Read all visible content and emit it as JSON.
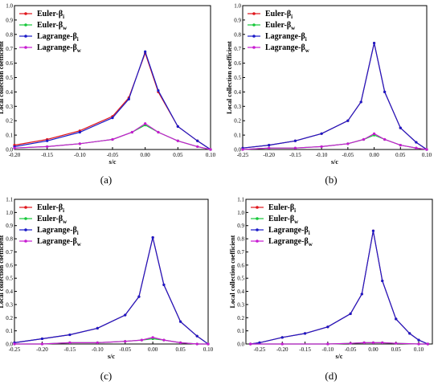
{
  "colors": {
    "euler_bi": "#e0151b",
    "euler_bw": "#16c83a",
    "lagrange_bi": "#1a1ac8",
    "lagrange_bw": "#c81ad2",
    "axis": "#000000"
  },
  "chart_data": [
    {
      "type": "line",
      "panel_label": "(a)",
      "xlabel": "s/c",
      "ylabel": "Local collection coefficient",
      "xlim": [
        -0.2,
        0.1
      ],
      "ylim": [
        0.0,
        1.0
      ],
      "xticks": [
        "-0.20",
        "-0.15",
        "-0.10",
        "-0.05",
        "0.00",
        "0.05",
        "0.10"
      ],
      "yticks": [
        "0.0",
        "0.1",
        "0.2",
        "0.3",
        "0.4",
        "0.5",
        "0.6",
        "0.7",
        "0.8",
        "0.9",
        "1.0"
      ],
      "legend_position": "top-left",
      "series": [
        {
          "name": "Euler-β",
          "subscript": "i",
          "color": "#e0151b",
          "x": [
            -0.2,
            -0.15,
            -0.1,
            -0.05,
            -0.025,
            0.0,
            0.02,
            0.05,
            0.08,
            0.1
          ],
          "y": [
            0.03,
            0.07,
            0.13,
            0.23,
            0.36,
            0.67,
            0.4,
            0.16,
            0.06,
            0.0
          ]
        },
        {
          "name": "Euler-β",
          "subscript": "w",
          "color": "#16c83a",
          "x": [
            -0.2,
            -0.15,
            -0.1,
            -0.05,
            -0.02,
            0.0,
            0.02,
            0.05,
            0.08,
            0.1
          ],
          "y": [
            0.01,
            0.02,
            0.04,
            0.07,
            0.12,
            0.17,
            0.12,
            0.06,
            0.02,
            0.0
          ]
        },
        {
          "name": "Lagrange-β",
          "subscript": "i",
          "color": "#1a1ac8",
          "x": [
            -0.2,
            -0.15,
            -0.1,
            -0.05,
            -0.025,
            0.0,
            0.02,
            0.05,
            0.08,
            0.1
          ],
          "y": [
            0.02,
            0.06,
            0.12,
            0.22,
            0.35,
            0.68,
            0.41,
            0.16,
            0.06,
            0.0
          ]
        },
        {
          "name": "Lagrange-β",
          "subscript": "w",
          "color": "#c81ad2",
          "x": [
            -0.2,
            -0.15,
            -0.1,
            -0.05,
            -0.02,
            0.0,
            0.02,
            0.05,
            0.08,
            0.1
          ],
          "y": [
            0.01,
            0.02,
            0.04,
            0.07,
            0.12,
            0.18,
            0.12,
            0.06,
            0.02,
            0.0
          ]
        }
      ]
    },
    {
      "type": "line",
      "panel_label": "(b)",
      "xlabel": "s/c",
      "ylabel": "Local collection coefficient",
      "xlim": [
        -0.25,
        0.1
      ],
      "ylim": [
        0.0,
        1.0
      ],
      "xticks": [
        "-0.25",
        "-0.20",
        "-0.15",
        "-0.10",
        "-0.05",
        "0.00",
        "0.05",
        "0.10"
      ],
      "yticks": [
        "0.0",
        "0.1",
        "0.2",
        "0.3",
        "0.4",
        "0.5",
        "0.6",
        "0.7",
        "0.8",
        "0.9",
        "1.0"
      ],
      "legend_position": "top-left",
      "series": [
        {
          "name": "Euler-β",
          "subscript": "i",
          "color": "#e0151b",
          "x": [
            -0.25,
            -0.2,
            -0.15,
            -0.1,
            -0.05,
            -0.025,
            0.0,
            0.02,
            0.05,
            0.08,
            0.1
          ],
          "y": [
            0.01,
            0.03,
            0.06,
            0.11,
            0.2,
            0.33,
            0.74,
            0.4,
            0.15,
            0.05,
            0.0
          ]
        },
        {
          "name": "Euler-β",
          "subscript": "w",
          "color": "#16c83a",
          "x": [
            -0.25,
            -0.2,
            -0.15,
            -0.1,
            -0.05,
            -0.02,
            0.0,
            0.02,
            0.05,
            0.08,
            0.1
          ],
          "y": [
            0.0,
            0.01,
            0.01,
            0.02,
            0.04,
            0.07,
            0.1,
            0.07,
            0.03,
            0.01,
            0.0
          ]
        },
        {
          "name": "Lagrange-β",
          "subscript": "i",
          "color": "#1a1ac8",
          "x": [
            -0.25,
            -0.2,
            -0.15,
            -0.1,
            -0.05,
            -0.025,
            0.0,
            0.02,
            0.05,
            0.08,
            0.1
          ],
          "y": [
            0.01,
            0.03,
            0.06,
            0.11,
            0.2,
            0.33,
            0.74,
            0.4,
            0.15,
            0.05,
            0.0
          ]
        },
        {
          "name": "Lagrange-β",
          "subscript": "w",
          "color": "#c81ad2",
          "x": [
            -0.25,
            -0.2,
            -0.15,
            -0.1,
            -0.05,
            -0.02,
            0.0,
            0.02,
            0.05,
            0.08,
            0.1
          ],
          "y": [
            0.0,
            0.01,
            0.01,
            0.02,
            0.04,
            0.07,
            0.11,
            0.07,
            0.03,
            0.01,
            0.0
          ]
        }
      ]
    },
    {
      "type": "line",
      "panel_label": "(c)",
      "xlabel": "s/c",
      "ylabel": "Local collection coefficient",
      "xlim": [
        -0.25,
        0.1
      ],
      "ylim": [
        0.0,
        1.1
      ],
      "xticks": [
        "-0.25",
        "-0.20",
        "-0.15",
        "-0.10",
        "-0.05",
        "0.00",
        "0.05",
        "0.10"
      ],
      "yticks": [
        "0.0",
        "0.1",
        "0.2",
        "0.3",
        "0.4",
        "0.5",
        "0.6",
        "0.7",
        "0.8",
        "0.9",
        "1.0",
        "1.1"
      ],
      "legend_position": "top-left",
      "series": [
        {
          "name": "Euler-β",
          "subscript": "i",
          "color": "#e0151b",
          "x": [
            -0.25,
            -0.2,
            -0.15,
            -0.1,
            -0.05,
            -0.025,
            0.0,
            0.02,
            0.05,
            0.08,
            0.1
          ],
          "y": [
            0.01,
            0.04,
            0.07,
            0.12,
            0.22,
            0.36,
            0.81,
            0.45,
            0.17,
            0.06,
            0.0
          ]
        },
        {
          "name": "Euler-β",
          "subscript": "w",
          "color": "#16c83a",
          "x": [
            -0.25,
            -0.2,
            -0.15,
            -0.1,
            -0.05,
            -0.02,
            0.0,
            0.02,
            0.05,
            0.08,
            0.1
          ],
          "y": [
            0.0,
            0.0,
            0.01,
            0.01,
            0.02,
            0.03,
            0.04,
            0.03,
            0.01,
            0.0,
            0.0
          ]
        },
        {
          "name": "Lagrange-β",
          "subscript": "i",
          "color": "#1a1ac8",
          "x": [
            -0.25,
            -0.2,
            -0.15,
            -0.1,
            -0.05,
            -0.025,
            0.0,
            0.02,
            0.05,
            0.08,
            0.1
          ],
          "y": [
            0.01,
            0.04,
            0.07,
            0.12,
            0.22,
            0.36,
            0.81,
            0.45,
            0.17,
            0.06,
            0.0
          ]
        },
        {
          "name": "Lagrange-β",
          "subscript": "w",
          "color": "#c81ad2",
          "x": [
            -0.25,
            -0.2,
            -0.15,
            -0.1,
            -0.05,
            -0.02,
            0.0,
            0.02,
            0.05,
            0.08,
            0.1
          ],
          "y": [
            0.0,
            0.0,
            0.01,
            0.01,
            0.02,
            0.03,
            0.05,
            0.03,
            0.01,
            0.0,
            0.0
          ]
        }
      ]
    },
    {
      "type": "line",
      "panel_label": "(d)",
      "xlabel": "s/c",
      "ylabel": "Local collection coefficient",
      "xlim": [
        -0.28,
        0.13
      ],
      "ylim": [
        0.0,
        1.1
      ],
      "xticks": [
        "-0.25",
        "-0.20",
        "-0.15",
        "-0.10",
        "-0.05",
        "0.00",
        "0.05",
        "0.10"
      ],
      "yticks": [
        "0.0",
        "0.1",
        "0.2",
        "0.3",
        "0.4",
        "0.5",
        "0.6",
        "0.7",
        "0.8",
        "0.9",
        "1.0",
        "1.1"
      ],
      "legend_position": "top-left",
      "series": [
        {
          "name": "Euler-β",
          "subscript": "i",
          "color": "#e0151b",
          "x": [
            -0.27,
            -0.25,
            -0.2,
            -0.15,
            -0.1,
            -0.05,
            -0.025,
            0.0,
            0.02,
            0.05,
            0.08,
            0.1,
            0.12
          ],
          "y": [
            0.0,
            0.01,
            0.05,
            0.08,
            0.13,
            0.23,
            0.38,
            0.86,
            0.48,
            0.19,
            0.08,
            0.03,
            0.0
          ]
        },
        {
          "name": "Euler-β",
          "subscript": "w",
          "color": "#16c83a",
          "x": [
            -0.27,
            -0.2,
            -0.1,
            -0.05,
            -0.02,
            0.0,
            0.02,
            0.05,
            0.1,
            0.12
          ],
          "y": [
            0.0,
            0.0,
            0.0,
            0.005,
            0.01,
            0.01,
            0.01,
            0.005,
            0.0,
            0.0
          ]
        },
        {
          "name": "Lagrange-β",
          "subscript": "i",
          "color": "#1a1ac8",
          "x": [
            -0.27,
            -0.25,
            -0.2,
            -0.15,
            -0.1,
            -0.05,
            -0.025,
            0.0,
            0.02,
            0.05,
            0.08,
            0.1,
            0.12
          ],
          "y": [
            0.0,
            0.01,
            0.05,
            0.08,
            0.13,
            0.23,
            0.38,
            0.86,
            0.48,
            0.19,
            0.08,
            0.03,
            0.0
          ]
        },
        {
          "name": "Lagrange-β",
          "subscript": "w",
          "color": "#c81ad2",
          "x": [
            -0.27,
            -0.2,
            -0.1,
            -0.05,
            -0.02,
            0.0,
            0.02,
            0.05,
            0.1,
            0.12
          ],
          "y": [
            0.0,
            0.0,
            0.0,
            0.005,
            0.01,
            0.01,
            0.01,
            0.005,
            0.0,
            0.0
          ]
        }
      ]
    }
  ]
}
